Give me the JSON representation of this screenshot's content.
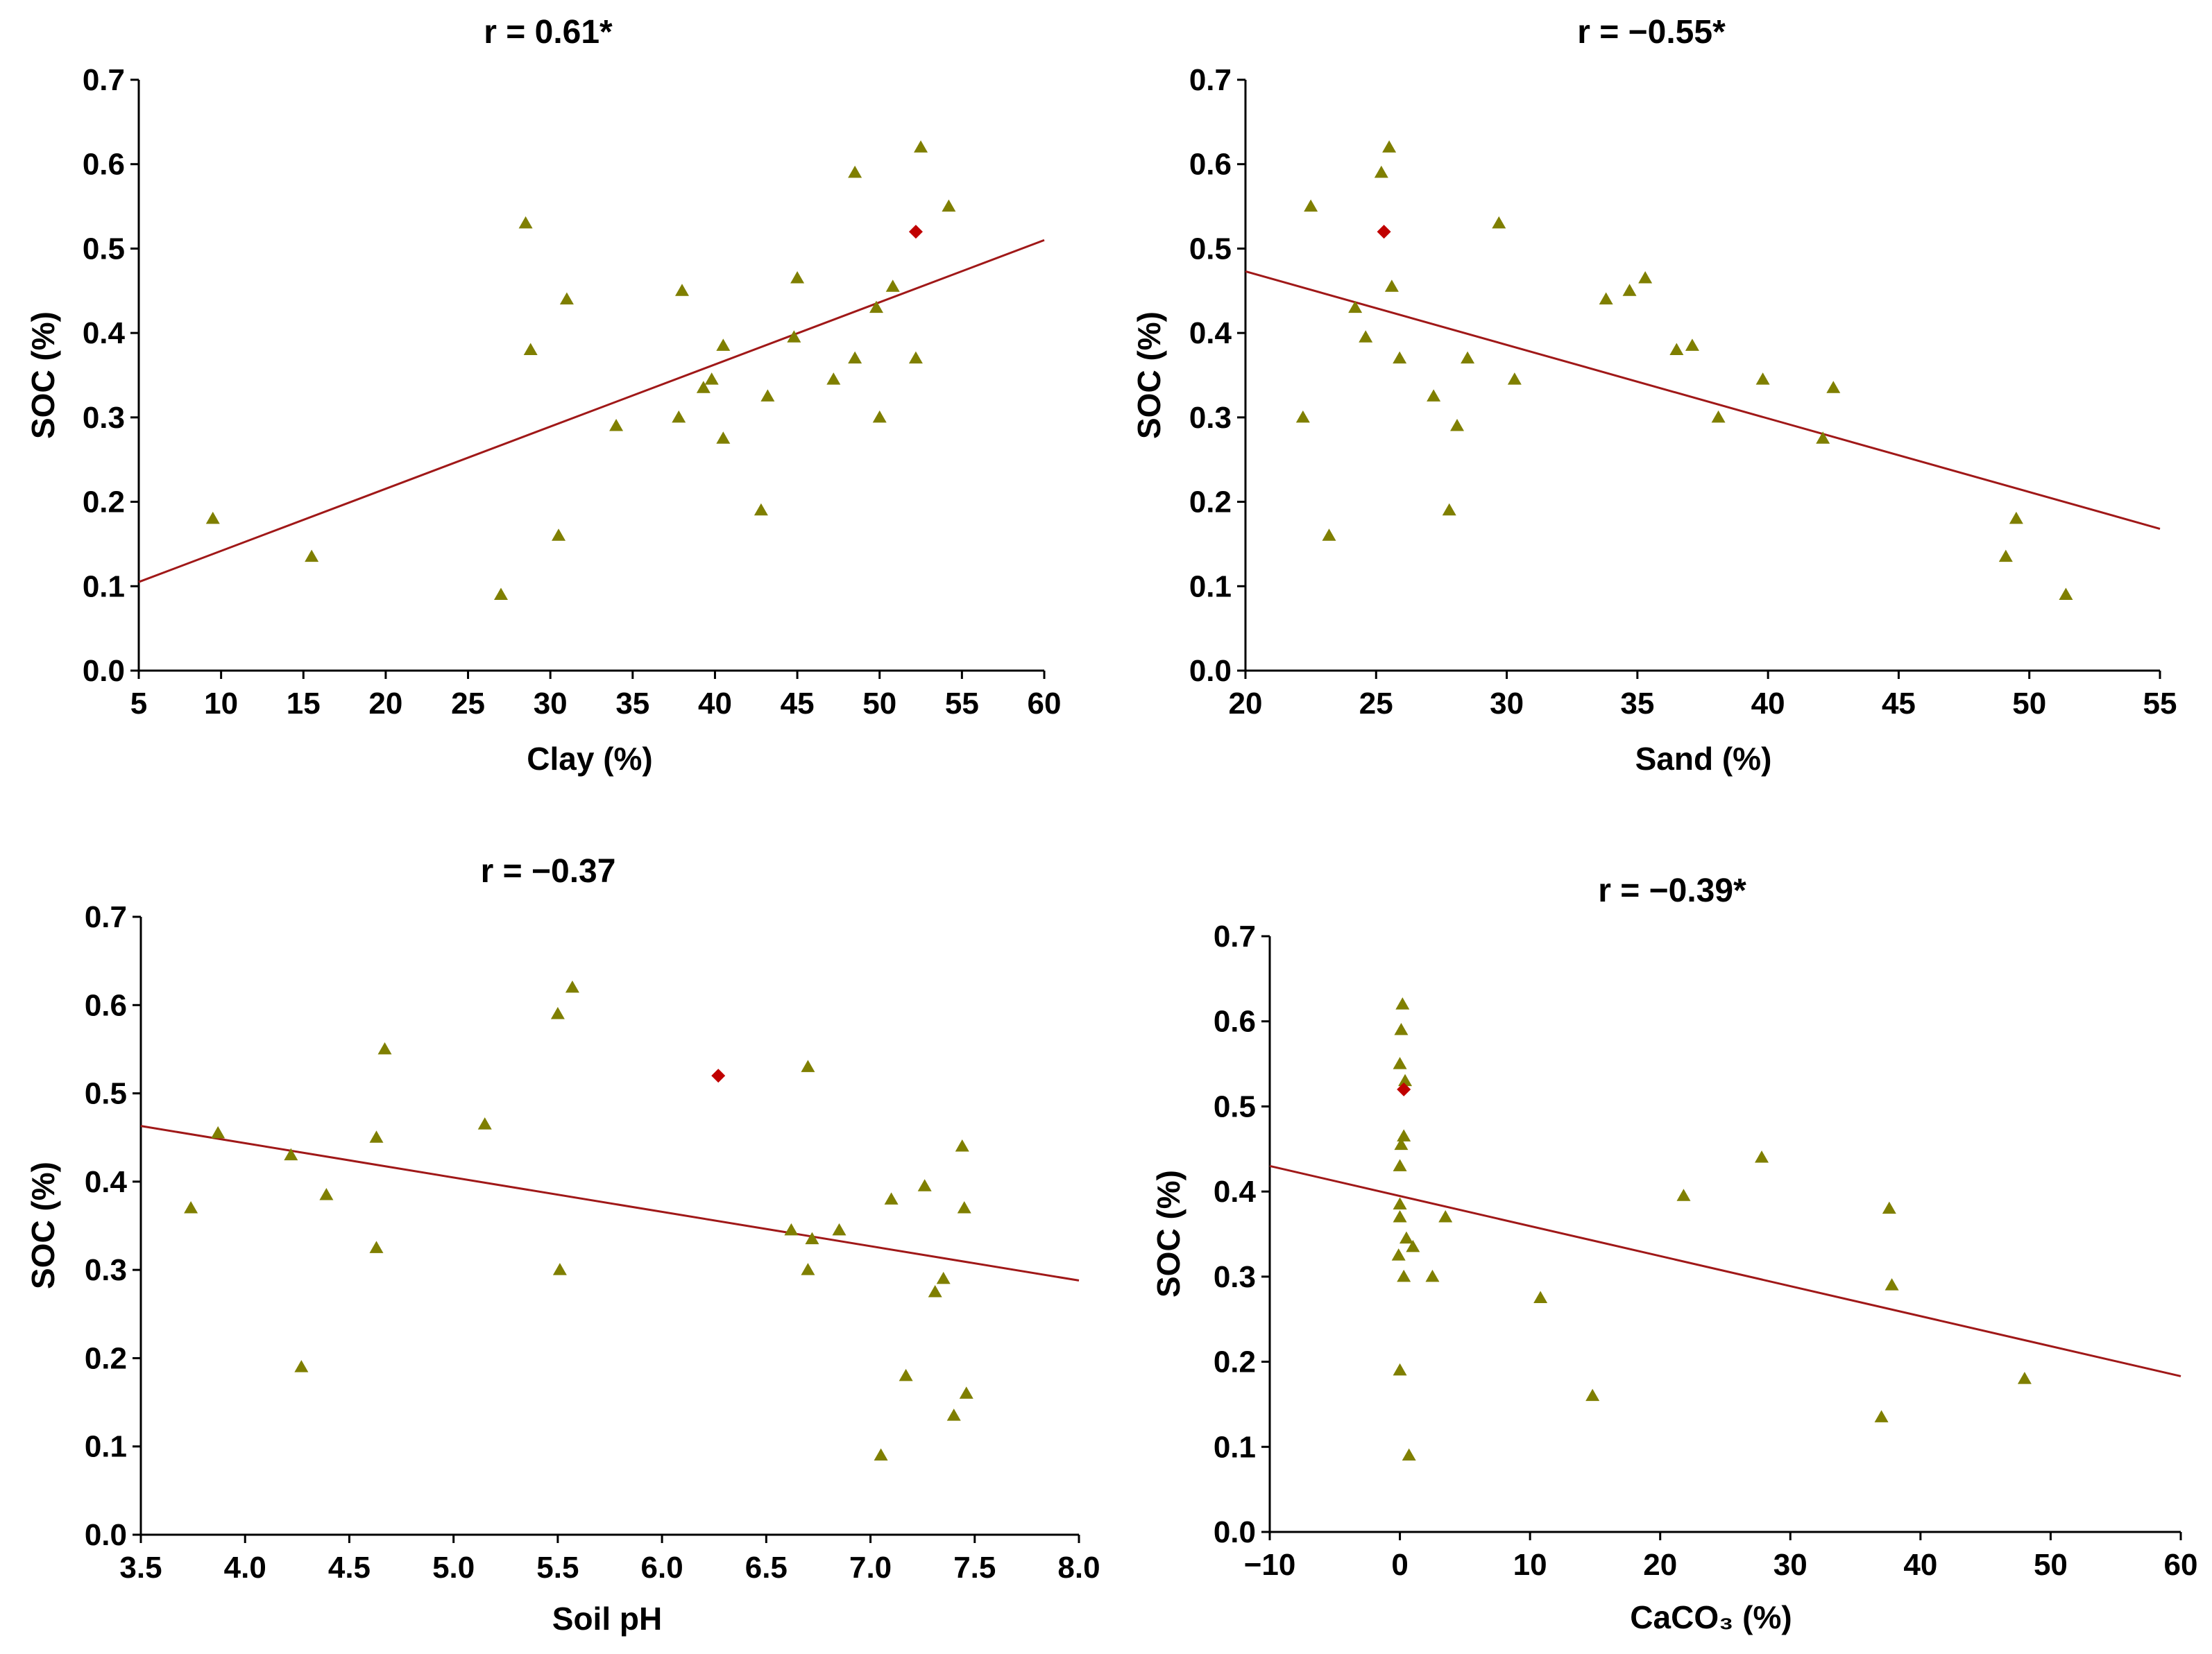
{
  "colors": {
    "point": "#7f7f00",
    "highlight": "#c00000",
    "fit_line": "#a01818",
    "axis": "#000000"
  },
  "chart_data": [
    {
      "type": "scatter",
      "title": "r = 0.61*",
      "xlabel": "Clay (%)",
      "ylabel": "SOC (%)",
      "xlim": [
        5,
        60
      ],
      "ylim": [
        0.0,
        0.7
      ],
      "xticks": [
        "5",
        "10",
        "15",
        "20",
        "25",
        "30",
        "35",
        "40",
        "45",
        "50",
        "55",
        "60"
      ],
      "yticks": [
        "0.0",
        "0.1",
        "0.2",
        "0.3",
        "0.4",
        "0.5",
        "0.6",
        "0.7"
      ],
      "fit_line": [
        [
          5,
          0.105
        ],
        [
          60,
          0.51
        ]
      ],
      "highlight": [
        [
          52.2,
          0.52
        ]
      ],
      "points": [
        [
          9.5,
          0.18
        ],
        [
          15.5,
          0.135
        ],
        [
          27,
          0.09
        ],
        [
          28.5,
          0.53
        ],
        [
          28.8,
          0.38
        ],
        [
          30.5,
          0.16
        ],
        [
          31,
          0.44
        ],
        [
          34,
          0.29
        ],
        [
          37.8,
          0.3
        ],
        [
          38,
          0.45
        ],
        [
          39.3,
          0.335
        ],
        [
          39.8,
          0.345
        ],
        [
          40.5,
          0.385
        ],
        [
          40.5,
          0.275
        ],
        [
          42.8,
          0.19
        ],
        [
          43.2,
          0.325
        ],
        [
          44.8,
          0.395
        ],
        [
          45,
          0.465
        ],
        [
          47.2,
          0.345
        ],
        [
          48.5,
          0.37
        ],
        [
          48.5,
          0.59
        ],
        [
          49.8,
          0.43
        ],
        [
          50,
          0.3
        ],
        [
          50.8,
          0.455
        ],
        [
          52.2,
          0.37
        ],
        [
          52.5,
          0.62
        ],
        [
          54.2,
          0.55
        ]
      ]
    },
    {
      "type": "scatter",
      "title": "r = −0.55*",
      "xlabel": "Sand (%)",
      "ylabel": "SOC (%)",
      "xlim": [
        20,
        55
      ],
      "ylim": [
        0.0,
        0.7
      ],
      "xticks": [
        "20",
        "25",
        "30",
        "35",
        "40",
        "45",
        "50",
        "55"
      ],
      "yticks": [
        "0.0",
        "0.1",
        "0.2",
        "0.3",
        "0.4",
        "0.5",
        "0.6",
        "0.7"
      ],
      "fit_line": [
        [
          20,
          0.473
        ],
        [
          55,
          0.168
        ]
      ],
      "highlight": [
        [
          25.3,
          0.52
        ]
      ],
      "points": [
        [
          22.2,
          0.3
        ],
        [
          22.5,
          0.55
        ],
        [
          23.2,
          0.16
        ],
        [
          24.2,
          0.43
        ],
        [
          24.6,
          0.395
        ],
        [
          25.2,
          0.59
        ],
        [
          25.5,
          0.62
        ],
        [
          25.6,
          0.455
        ],
        [
          25.9,
          0.37
        ],
        [
          27.2,
          0.325
        ],
        [
          27.8,
          0.19
        ],
        [
          28.1,
          0.29
        ],
        [
          28.5,
          0.37
        ],
        [
          29.7,
          0.53
        ],
        [
          30.3,
          0.345
        ],
        [
          33.8,
          0.44
        ],
        [
          34.7,
          0.45
        ],
        [
          35.3,
          0.465
        ],
        [
          36.5,
          0.38
        ],
        [
          37.1,
          0.385
        ],
        [
          38.1,
          0.3
        ],
        [
          39.8,
          0.345
        ],
        [
          42.1,
          0.275
        ],
        [
          42.5,
          0.335
        ],
        [
          49.1,
          0.135
        ],
        [
          49.5,
          0.18
        ],
        [
          51.4,
          0.09
        ]
      ]
    },
    {
      "type": "scatter",
      "title": "r = −0.37",
      "xlabel": "Soil pH",
      "ylabel": "SOC (%)",
      "xlim": [
        3.5,
        8.0
      ],
      "ylim": [
        0.0,
        0.7
      ],
      "xticks": [
        "3.5",
        "4.0",
        "4.5",
        "5.0",
        "5.5",
        "6.0",
        "6.5",
        "7.0",
        "7.5",
        "8.0"
      ],
      "yticks": [
        "0.0",
        "0.1",
        "0.2",
        "0.3",
        "0.4",
        "0.5",
        "0.6",
        "0.7"
      ],
      "fit_line": [
        [
          3.5,
          0.463
        ],
        [
          8.0,
          0.288
        ]
      ],
      "highlight": [
        [
          6.27,
          0.52
        ]
      ],
      "points": [
        [
          3.74,
          0.37
        ],
        [
          3.87,
          0.455
        ],
        [
          4.22,
          0.43
        ],
        [
          4.27,
          0.19
        ],
        [
          4.39,
          0.385
        ],
        [
          4.63,
          0.45
        ],
        [
          4.63,
          0.325
        ],
        [
          4.67,
          0.55
        ],
        [
          5.15,
          0.465
        ],
        [
          5.5,
          0.59
        ],
        [
          5.51,
          0.3
        ],
        [
          5.57,
          0.62
        ],
        [
          6.62,
          0.345
        ],
        [
          6.7,
          0.53
        ],
        [
          6.7,
          0.3
        ],
        [
          6.72,
          0.335
        ],
        [
          6.85,
          0.345
        ],
        [
          7.05,
          0.09
        ],
        [
          7.1,
          0.38
        ],
        [
          7.17,
          0.18
        ],
        [
          7.26,
          0.395
        ],
        [
          7.31,
          0.275
        ],
        [
          7.35,
          0.29
        ],
        [
          7.4,
          0.135
        ],
        [
          7.44,
          0.44
        ],
        [
          7.45,
          0.37
        ],
        [
          7.46,
          0.16
        ]
      ]
    },
    {
      "type": "scatter",
      "title": "r = −0.39*",
      "xlabel": "CaCO₃ (%)",
      "ylabel": "SOC (%)",
      "xlim": [
        -10,
        60
      ],
      "ylim": [
        0.0,
        0.7
      ],
      "xticks": [
        "−10",
        "0",
        "10",
        "20",
        "30",
        "40",
        "50",
        "60"
      ],
      "yticks": [
        "0.0",
        "0.1",
        "0.2",
        "0.3",
        "0.4",
        "0.5",
        "0.6",
        "0.7"
      ],
      "fit_line": [
        [
          -10,
          0.43
        ],
        [
          60,
          0.183
        ]
      ],
      "highlight": [
        [
          0.3,
          0.52
        ]
      ],
      "points": [
        [
          0.2,
          0.62
        ],
        [
          0.1,
          0.59
        ],
        [
          0,
          0.55
        ],
        [
          0.4,
          0.53
        ],
        [
          0.3,
          0.465
        ],
        [
          0.1,
          0.455
        ],
        [
          0,
          0.43
        ],
        [
          0,
          0.385
        ],
        [
          0,
          0.37
        ],
        [
          0.5,
          0.345
        ],
        [
          1,
          0.335
        ],
        [
          -0.1,
          0.325
        ],
        [
          0.3,
          0.3
        ],
        [
          0,
          0.19
        ],
        [
          0.7,
          0.09
        ],
        [
          2.5,
          0.3
        ],
        [
          3.5,
          0.37
        ],
        [
          10.8,
          0.275
        ],
        [
          14.8,
          0.16
        ],
        [
          21.8,
          0.395
        ],
        [
          27.8,
          0.44
        ],
        [
          37,
          0.135
        ],
        [
          37.6,
          0.38
        ],
        [
          37.8,
          0.29
        ],
        [
          48,
          0.18
        ]
      ]
    }
  ]
}
